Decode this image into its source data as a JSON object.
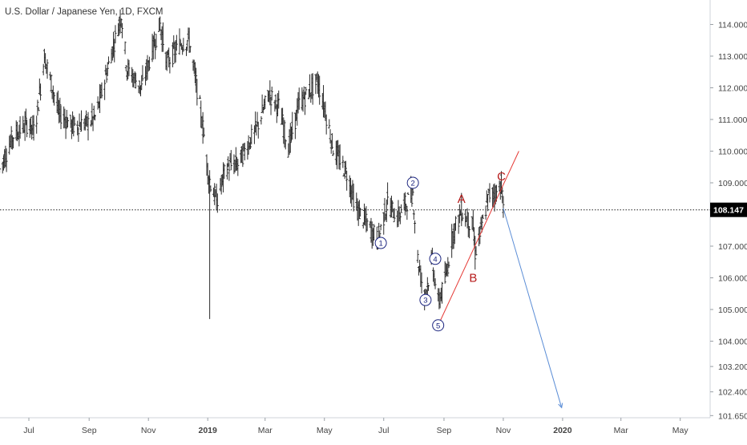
{
  "header": {
    "title": "U.S. Dollar / Japanese Yen, 1D, FXCM"
  },
  "chart_data": {
    "type": "candlestick",
    "title": "U.S. Dollar / Japanese Yen, 1D, FXCM",
    "xlabel": "",
    "ylabel": "",
    "ylim": [
      101.65,
      114.6
    ],
    "y_ticks": [
      "114.000",
      "113.000",
      "112.000",
      "111.000",
      "110.000",
      "109.000",
      "107.000",
      "106.000",
      "105.000",
      "104.000",
      "103.200",
      "102.400",
      "101.650"
    ],
    "x_ticks": [
      "Jul",
      "Sep",
      "Nov",
      "2019",
      "Mar",
      "May",
      "Jul",
      "Sep",
      "Nov",
      "2020",
      "Mar",
      "May"
    ],
    "last_price": {
      "label": "108.147",
      "value": 108.147
    },
    "series": [
      {
        "price_path": [
          [
            "2018-06-01",
            109.4
          ],
          [
            "2018-06-15",
            110.5
          ],
          [
            "2018-07-01",
            110.9
          ],
          [
            "2018-07-07",
            110.6
          ],
          [
            "2018-07-17",
            113.0
          ],
          [
            "2018-08-01",
            111.2
          ],
          [
            "2018-08-15",
            110.8
          ],
          [
            "2018-09-01",
            110.9
          ],
          [
            "2018-09-08",
            111.1
          ],
          [
            "2018-09-20",
            112.6
          ],
          [
            "2018-10-04",
            114.3
          ],
          [
            "2018-10-10",
            112.6
          ],
          [
            "2018-10-25",
            112.0
          ],
          [
            "2018-11-05",
            113.2
          ],
          [
            "2018-11-13",
            114.0
          ],
          [
            "2018-11-20",
            112.8
          ],
          [
            "2018-12-04",
            113.4
          ],
          [
            "2018-12-13",
            113.5
          ],
          [
            "2018-12-26",
            111.0
          ],
          [
            "2019-01-02",
            109.2
          ],
          [
            "2019-01-10",
            108.4
          ],
          [
            "2019-01-20",
            109.5
          ],
          [
            "2019-02-01",
            109.6
          ],
          [
            "2019-02-20",
            110.7
          ],
          [
            "2019-03-05",
            111.8
          ],
          [
            "2019-03-15",
            111.4
          ],
          [
            "2019-03-25",
            110.1
          ],
          [
            "2019-04-05",
            111.5
          ],
          [
            "2019-04-24",
            112.2
          ],
          [
            "2019-05-01",
            111.4
          ],
          [
            "2019-05-10",
            110.1
          ],
          [
            "2019-05-24",
            109.3
          ],
          [
            "2019-06-03",
            108.2
          ],
          [
            "2019-06-25",
            107.2
          ],
          [
            "2019-07-05",
            108.4
          ],
          [
            "2019-07-15",
            107.9
          ],
          [
            "2019-07-31",
            108.7
          ],
          [
            "2019-08-05",
            106.6
          ],
          [
            "2019-08-12",
            105.4
          ],
          [
            "2019-08-20",
            106.5
          ],
          [
            "2019-08-26",
            105.2
          ],
          [
            "2019-09-03",
            106.0
          ],
          [
            "2019-09-10",
            107.4
          ],
          [
            "2019-09-19",
            108.1
          ],
          [
            "2019-09-26",
            107.8
          ],
          [
            "2019-10-01",
            107.6
          ],
          [
            "2019-10-03",
            106.8
          ],
          [
            "2019-10-10",
            107.6
          ],
          [
            "2019-10-17",
            108.6
          ],
          [
            "2019-10-25",
            108.7
          ],
          [
            "2019-10-30",
            109.0
          ],
          [
            "2019-11-01",
            108.15
          ]
        ]
      }
    ],
    "wave_labels": [
      {
        "text": "1",
        "date": "2019-06-28",
        "price": 107.1,
        "circled": true,
        "color": "#1a237e"
      },
      {
        "text": "2",
        "date": "2019-07-31",
        "price": 109.0,
        "circled": true,
        "color": "#1a237e"
      },
      {
        "text": "3",
        "date": "2019-08-13",
        "price": 105.3,
        "circled": true,
        "color": "#1a237e"
      },
      {
        "text": "4",
        "date": "2019-08-23",
        "price": 106.6,
        "circled": true,
        "color": "#1a237e"
      },
      {
        "text": "5",
        "date": "2019-08-26",
        "price": 104.5,
        "circled": true,
        "color": "#1a237e"
      },
      {
        "text": "A",
        "date": "2019-09-19",
        "price": 108.5,
        "circled": false,
        "color": "#b71c1c"
      },
      {
        "text": "B",
        "date": "2019-10-01",
        "price": 106.0,
        "circled": false,
        "color": "#b71c1c"
      },
      {
        "text": "C",
        "date": "2019-10-30",
        "price": 109.2,
        "circled": false,
        "color": "#b71c1c"
      }
    ],
    "lines": [
      {
        "name": "trendline",
        "color": "#e53935",
        "from": [
          "2019-08-26",
          104.5
        ],
        "to": [
          "2019-11-17",
          110.0
        ]
      },
      {
        "name": "projection-arrow",
        "color": "#5b8dd6",
        "from": [
          "2019-11-01",
          108.2
        ],
        "to": [
          "2019-12-31",
          101.9
        ]
      }
    ],
    "grid": false
  }
}
